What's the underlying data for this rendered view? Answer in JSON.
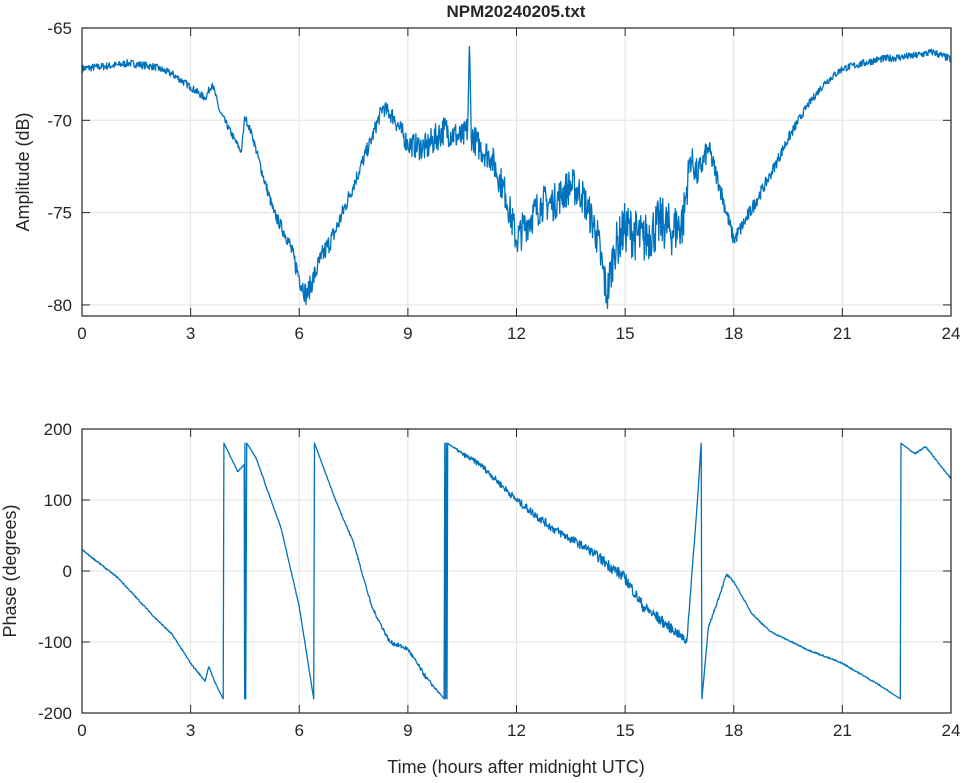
{
  "chart_data": [
    {
      "type": "line",
      "title": "NPM20240205.txt",
      "xlabel": "",
      "ylabel": "Amplitude (dB)",
      "xlim": [
        0,
        24
      ],
      "ylim": [
        -80.6,
        -65
      ],
      "grid": true,
      "xticks": [
        "0",
        "3",
        "6",
        "9",
        "12",
        "15",
        "18",
        "21",
        "24"
      ],
      "yticks": [
        "-65",
        "-70",
        "-75",
        "-80"
      ],
      "color": "#0072BD",
      "series": [
        {
          "name": "Amplitude",
          "x": [
            0,
            1,
            1.3,
            2,
            2.5,
            3,
            3.4,
            3.6,
            3.8,
            4.2,
            4.4,
            4.5,
            4.7,
            5,
            5.3,
            5.7,
            6,
            6.2,
            6.5,
            6.6,
            7,
            7.5,
            8,
            8.3,
            8.6,
            9,
            9.5,
            10,
            10.5,
            10.65,
            10.7,
            10.75,
            11,
            11.3,
            11.7,
            12,
            12.3,
            12.7,
            13,
            13.5,
            13.8,
            14,
            14.2,
            14.5,
            14.7,
            15,
            15.5,
            16,
            16.3,
            16.6,
            16.8,
            17,
            17.3,
            17.6,
            18,
            18.3,
            19,
            19.5,
            20,
            20.5,
            21,
            22,
            23,
            23.5,
            24
          ],
          "y": [
            -67.2,
            -67,
            -66.9,
            -67.1,
            -67.5,
            -68.2,
            -68.8,
            -68,
            -69.5,
            -71,
            -71.7,
            -69.8,
            -70.8,
            -73,
            -75,
            -76.5,
            -78.5,
            -79.5,
            -78,
            -77.5,
            -76,
            -73.5,
            -71,
            -69.3,
            -69.8,
            -71.3,
            -71.5,
            -70.5,
            -71,
            -70.5,
            -66,
            -70.8,
            -71.5,
            -72,
            -74,
            -76.5,
            -75.5,
            -74.5,
            -74.5,
            -73.5,
            -74,
            -75,
            -76,
            -79.5,
            -77,
            -75.8,
            -76.5,
            -75.5,
            -76,
            -75.5,
            -72,
            -73,
            -71.5,
            -73.5,
            -76.5,
            -75.5,
            -73,
            -71,
            -69.3,
            -68,
            -67.2,
            -66.7,
            -66.5,
            -66.3,
            -66.7
          ],
          "noise": [
            0.2,
            0.2,
            0.2,
            0.2,
            0.2,
            0.2,
            0.2,
            0.2,
            0.2,
            0.2,
            0.2,
            0.2,
            0.2,
            0.3,
            0.3,
            0.4,
            0.6,
            0.6,
            0.6,
            0.6,
            0.5,
            0.4,
            0.4,
            0.4,
            0.5,
            0.6,
            0.8,
            0.8,
            0.8,
            0.8,
            0.8,
            0.8,
            0.8,
            0.8,
            0.9,
            1,
            1,
            1,
            1,
            1,
            1,
            1,
            1.2,
            1.2,
            1.2,
            1.4,
            1.4,
            1.4,
            1.4,
            1.4,
            0.8,
            0.8,
            0.6,
            0.5,
            0.4,
            0.4,
            0.3,
            0.3,
            0.2,
            0.2,
            0.2,
            0.2,
            0.2,
            0.2,
            0.2
          ]
        }
      ]
    },
    {
      "type": "line",
      "title": "",
      "xlabel": "Time (hours after midnight UTC)",
      "ylabel": "Phase (degrees)",
      "xlim": [
        0,
        24
      ],
      "ylim": [
        -200,
        200
      ],
      "grid": true,
      "xticks": [
        "0",
        "3",
        "6",
        "9",
        "12",
        "15",
        "18",
        "21",
        "24"
      ],
      "yticks": [
        "200",
        "100",
        "0",
        "-100",
        "-200"
      ],
      "color": "#0072BD",
      "series": [
        {
          "name": "Phase",
          "x": [
            0,
            1,
            2,
            2.5,
            3,
            3.4,
            3.5,
            3.7,
            3.9,
            3.92,
            4.3,
            4.48,
            4.49,
            4.5,
            4.52,
            4.55,
            4.8,
            5.5,
            6,
            6.4,
            6.42,
            7,
            7.5,
            8,
            8.5,
            9,
            9.5,
            10,
            10.02,
            10.04,
            10.06,
            10.08,
            10.1,
            10.5,
            11,
            12,
            12.5,
            13,
            14,
            14.5,
            15,
            15.5,
            16,
            16.5,
            16.7,
            17,
            17.1,
            17.12,
            17.3,
            17.8,
            18,
            18.5,
            19,
            20,
            21,
            22,
            22.6,
            22.62,
            23,
            23.3,
            24
          ],
          "y": [
            30,
            -10,
            -65,
            -90,
            -130,
            -155,
            -135,
            -160,
            -180,
            180,
            140,
            150,
            -180,
            180,
            -180,
            180,
            160,
            60,
            -50,
            -180,
            180,
            100,
            40,
            -50,
            -100,
            -110,
            -150,
            -180,
            180,
            -180,
            180,
            -180,
            180,
            165,
            150,
            100,
            80,
            60,
            30,
            10,
            -10,
            -50,
            -70,
            -90,
            -100,
            100,
            180,
            -180,
            -80,
            -5,
            -15,
            -60,
            -85,
            -110,
            -130,
            -160,
            -180,
            180,
            165,
            175,
            130
          ],
          "noise": [
            1,
            1,
            1,
            1,
            1,
            1,
            1,
            1,
            0,
            0,
            1,
            0,
            0,
            0,
            0,
            0,
            1,
            1,
            1,
            0,
            0,
            1,
            2,
            2,
            3,
            3,
            3,
            0,
            0,
            0,
            0,
            0,
            0,
            3,
            4,
            5,
            6,
            6,
            6,
            8,
            8,
            8,
            8,
            6,
            6,
            0,
            0,
            0,
            2,
            2,
            1,
            1,
            1,
            1,
            1,
            1,
            0,
            0,
            1,
            1,
            1
          ]
        }
      ]
    }
  ]
}
